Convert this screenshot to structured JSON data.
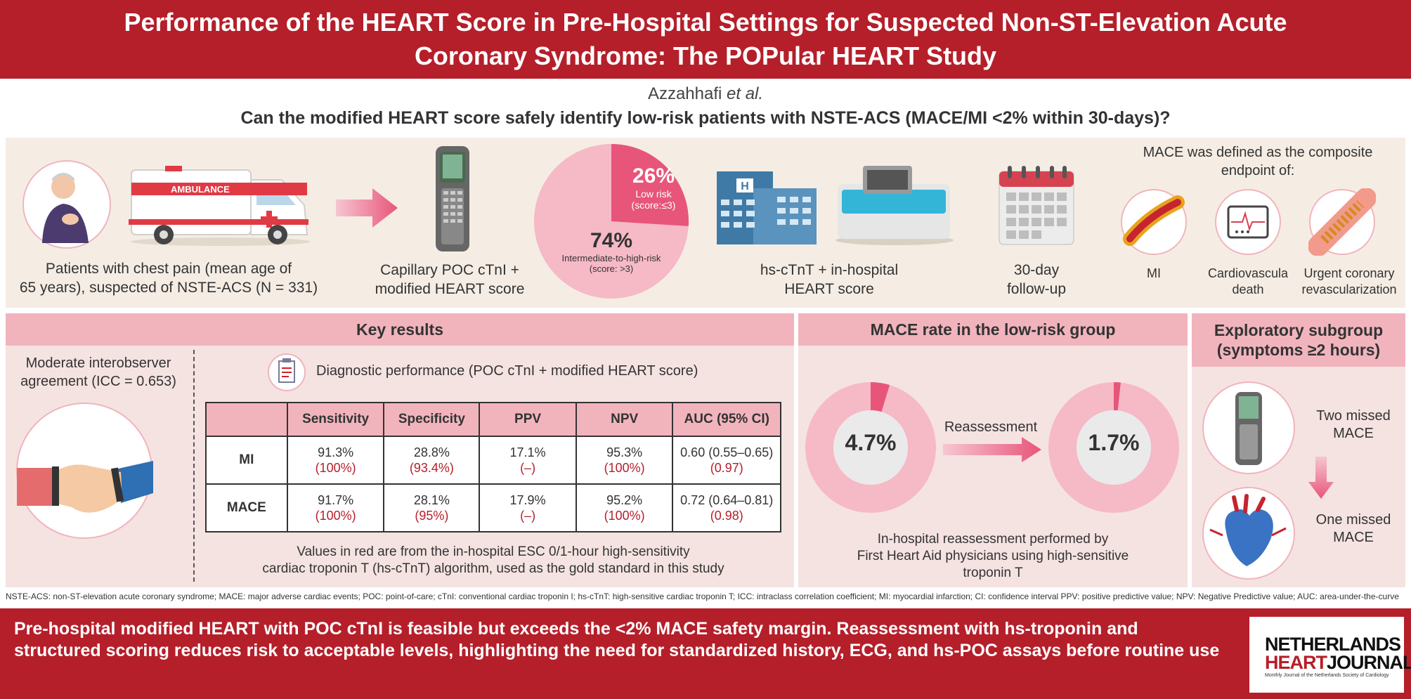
{
  "header": {
    "title_line1": "Performance of the HEART Score in Pre-Hospital Settings for Suspected Non-ST-Elevation Acute",
    "title_line2": "Coronary Syndrome: The POPular HEART Study"
  },
  "authors": {
    "name": "Azzahhafi",
    "etal": "et al."
  },
  "question": "Can the modified HEART score safely identify low-risk patients with NSTE-ACS (MACE/MI <2% within 30-days)?",
  "flow": {
    "ambulance_text": "AMBULANCE",
    "patients_caption_1": "Patients with chest pain (mean age of",
    "patients_caption_2": "65 years), suspected of NSTE-ACS (N = 331)",
    "poc_caption_1": "Capillary POC cTnI +",
    "poc_caption_2": "modified HEART score",
    "pie": {
      "low_pct": "26%",
      "low_label": "Low risk",
      "low_score": "(score:≤3)",
      "high_pct": "74%",
      "high_label": "Intermediate-to-high-risk",
      "high_score": "(score: >3)",
      "low_fraction": 0.26,
      "colors": {
        "low": "#e8557a",
        "high": "#f6b9c6"
      }
    },
    "hospital_sign": "H",
    "hs_caption_1": "hs-cTnT + in-hospital",
    "hs_caption_2": "HEART score",
    "followup_caption_1": "30-day",
    "followup_caption_2": "follow-up",
    "mace_def_1": "MACE was defined as the composite",
    "mace_def_2": "endpoint of:",
    "endpoints": [
      {
        "label_1": "MI",
        "label_2": ""
      },
      {
        "label_1": "Cardiovascula",
        "label_2": "death"
      },
      {
        "label_1": "Urgent coronary",
        "label_2": "revascularization"
      }
    ]
  },
  "key_results": {
    "heading": "Key results",
    "interobserver_1": "Moderate interobserver",
    "interobserver_2": "agreement (ICC = 0.653)",
    "diag_title": "Diagnostic performance (POC cTnI + modified HEART score)",
    "columns": [
      "",
      "Sensitivity",
      "Specificity",
      "PPV",
      "NPV",
      "AUC (95% CI)"
    ],
    "rows": [
      {
        "label": "MI",
        "cells": [
          {
            "main": "91.3%",
            "ref": "(100%)"
          },
          {
            "main": "28.8%",
            "ref": "(93.4%)"
          },
          {
            "main": "17.1%",
            "ref": "(–)"
          },
          {
            "main": "95.3%",
            "ref": "(100%)"
          },
          {
            "main": "0.60 (0.55–0.65)",
            "ref": "(0.97)"
          }
        ]
      },
      {
        "label": "MACE",
        "cells": [
          {
            "main": "91.7%",
            "ref": "(100%)"
          },
          {
            "main": "28.1%",
            "ref": "(95%)"
          },
          {
            "main": "17.9%",
            "ref": "(–)"
          },
          {
            "main": "95.2%",
            "ref": "(100%)"
          },
          {
            "main": "0.72 (0.64–0.81)",
            "ref": "(0.98)"
          }
        ]
      }
    ],
    "note_1": "Values in red are from the in-hospital ESC 0/1-hour high-sensitivity",
    "note_2": "cardiac troponin T (hs-cTnT) algorithm, used as the gold standard in this study"
  },
  "mace_rate": {
    "heading": "MACE rate in the low-risk group",
    "before": "4.7%",
    "before_fraction": 0.047,
    "arrow_label": "Reassessment",
    "after": "1.7%",
    "after_fraction": 0.017,
    "note_1": "In-hospital reassessment performed by",
    "note_2": "First Heart Aid physicians using high-sensitive",
    "note_3": "troponin T",
    "colors": {
      "ring": "#f6b9c6",
      "fill": "#e8557a",
      "center": "#eaeaea"
    }
  },
  "exploratory": {
    "heading_1": "Exploratory subgroup",
    "heading_2": "(symptoms ≥2 hours)",
    "top_1": "Two missed",
    "top_2": "MACE",
    "bottom_1": "One missed",
    "bottom_2": "MACE"
  },
  "footnote": "NSTE-ACS: non-ST-elevation acute coronary syndrome; MACE: major adverse cardiac events; POC: point-of-care; cTnI: conventional cardiac troponin I; hs-cTnT: high-sensitive cardiac troponin T; ICC: intraclass correlation coefficient; MI: myocardial infarction; CI: confidence interval PPV: positive predictive value; NPV: Negative Predictive value; AUC: area-under-the-curve",
  "conclusion": "Pre-hospital modified HEART with POC cTnI is feasible but exceeds the <2% MACE safety margin. Reassessment with hs-troponin and structured scoring reduces risk to acceptable levels, highlighting the need for standardized history, ECG, and hs-POC assays before routine use",
  "logo": {
    "line1": "NETHERLANDS",
    "line2a": "HEART",
    "line2b": "JOURNAL",
    "sub": "Monthly Journal of the Netherlands Society of Cardiology"
  }
}
